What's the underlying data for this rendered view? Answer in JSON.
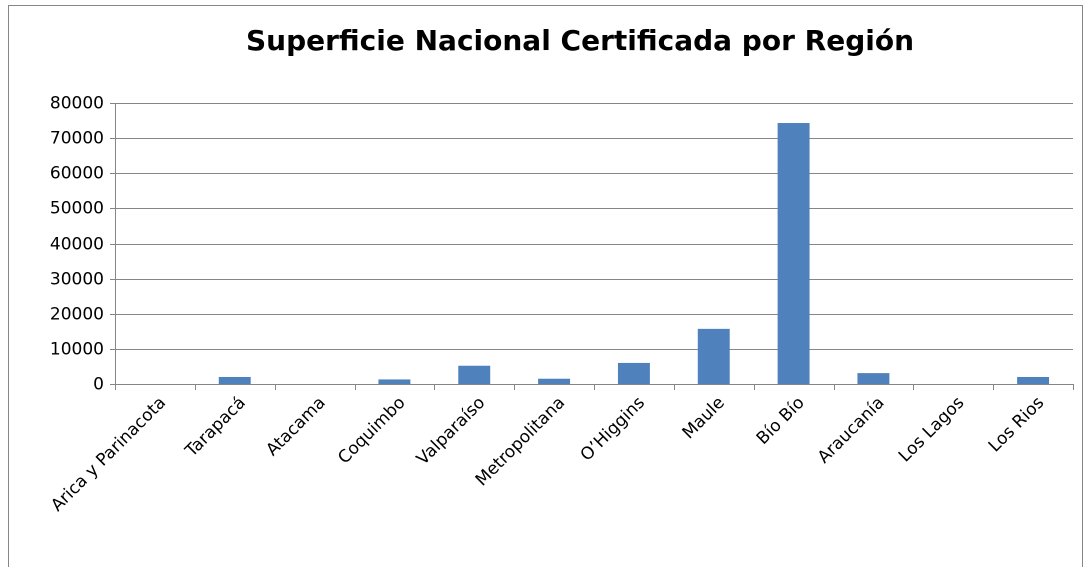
{
  "chart_data": {
    "type": "bar",
    "title": "Superficie Nacional Certificada por Región",
    "categories": [
      "Arica y Parinacota",
      "Tarapacá",
      "Atacama",
      "Coquimbo",
      "Valparaíso",
      "Metropolitana",
      "O’Higgins",
      "Maule",
      "Bío Bío",
      "Araucanía",
      "Los Lagos",
      "Los Rios"
    ],
    "values": [
      0,
      2000,
      0,
      1300,
      5200,
      1500,
      6000,
      15700,
      74300,
      3100,
      0,
      2000
    ],
    "color": "#4f81bd",
    "ylim": [
      0,
      80000
    ],
    "yticks": [
      0,
      10000,
      20000,
      30000,
      40000,
      50000,
      60000,
      70000,
      80000
    ],
    "grid": true
  }
}
